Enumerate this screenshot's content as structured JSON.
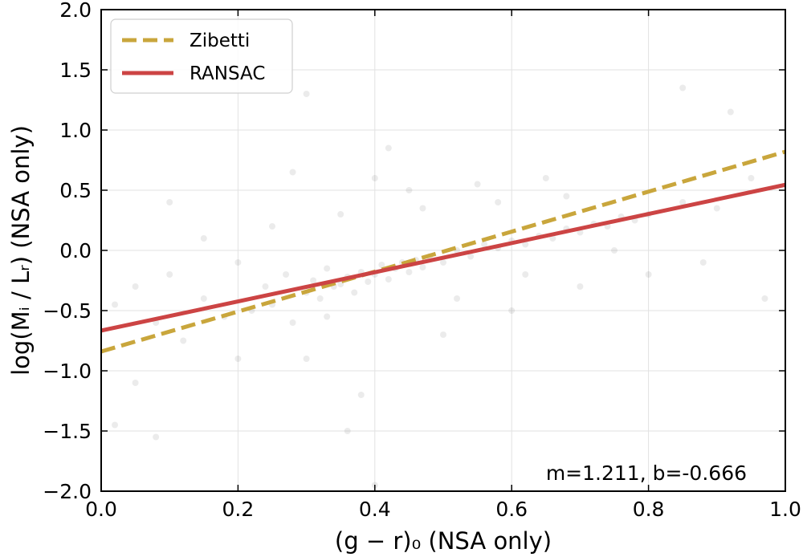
{
  "chart_data": {
    "type": "scatter",
    "xlabel": "(g − r)₀ (NSA only)",
    "ylabel": "log(Mᵢ / Lᵣ) (NSA only)",
    "xlim": [
      0.0,
      1.0
    ],
    "ylim": [
      -2.0,
      2.0
    ],
    "x_ticks": [
      0.0,
      0.2,
      0.4,
      0.6,
      0.8,
      1.0
    ],
    "x_tick_labels": [
      "0.0",
      "0.2",
      "0.4",
      "0.6",
      "0.8",
      "1.0"
    ],
    "y_ticks": [
      -2.0,
      -1.5,
      -1.0,
      -0.5,
      0.0,
      0.5,
      1.0,
      1.5,
      2.0
    ],
    "y_tick_labels": [
      "−2.0",
      "−1.5",
      "−1.0",
      "−0.5",
      "0.0",
      "0.5",
      "1.0",
      "1.5",
      "2.0"
    ],
    "grid": true,
    "legend_position": "top-left",
    "scatter": {
      "color": "#000000",
      "opacity": 0.08,
      "points": [
        [
          0.02,
          -0.45
        ],
        [
          0.05,
          -0.3
        ],
        [
          0.08,
          -0.6
        ],
        [
          0.1,
          -0.2
        ],
        [
          0.12,
          -0.75
        ],
        [
          0.15,
          -0.4
        ],
        [
          0.18,
          -0.55
        ],
        [
          0.2,
          -0.1
        ],
        [
          0.22,
          -0.5
        ],
        [
          0.24,
          -0.3
        ],
        [
          0.25,
          -0.45
        ],
        [
          0.27,
          -0.2
        ],
        [
          0.28,
          -0.6
        ],
        [
          0.3,
          -0.35
        ],
        [
          0.31,
          -0.25
        ],
        [
          0.32,
          -0.4
        ],
        [
          0.33,
          -0.15
        ],
        [
          0.34,
          -0.3
        ],
        [
          0.35,
          -0.28
        ],
        [
          0.36,
          -0.22
        ],
        [
          0.37,
          -0.35
        ],
        [
          0.38,
          -0.18
        ],
        [
          0.39,
          -0.26
        ],
        [
          0.4,
          -0.2
        ],
        [
          0.41,
          -0.12
        ],
        [
          0.42,
          -0.24
        ],
        [
          0.43,
          -0.15
        ],
        [
          0.44,
          -0.1
        ],
        [
          0.45,
          -0.18
        ],
        [
          0.46,
          -0.08
        ],
        [
          0.47,
          -0.14
        ],
        [
          0.48,
          -0.05
        ],
        [
          0.5,
          -0.1
        ],
        [
          0.52,
          0.0
        ],
        [
          0.54,
          -0.05
        ],
        [
          0.56,
          0.05
        ],
        [
          0.58,
          0.02
        ],
        [
          0.6,
          0.08
        ],
        [
          0.62,
          0.05
        ],
        [
          0.64,
          0.12
        ],
        [
          0.66,
          0.1
        ],
        [
          0.68,
          0.18
        ],
        [
          0.7,
          0.15
        ],
        [
          0.72,
          0.22
        ],
        [
          0.74,
          0.2
        ],
        [
          0.76,
          0.28
        ],
        [
          0.78,
          0.25
        ],
        [
          0.8,
          0.3
        ],
        [
          0.35,
          0.3
        ],
        [
          0.4,
          0.6
        ],
        [
          0.45,
          0.5
        ],
        [
          0.3,
          -0.9
        ],
        [
          0.5,
          -0.7
        ],
        [
          0.55,
          0.55
        ],
        [
          0.6,
          -0.5
        ],
        [
          0.25,
          0.2
        ],
        [
          0.2,
          -0.9
        ],
        [
          0.65,
          0.6
        ],
        [
          0.7,
          -0.3
        ],
        [
          0.85,
          0.4
        ],
        [
          0.9,
          0.35
        ],
        [
          0.92,
          1.15
        ],
        [
          0.1,
          0.4
        ],
        [
          0.05,
          -1.1
        ],
        [
          0.15,
          0.1
        ],
        [
          0.42,
          0.85
        ],
        [
          0.38,
          -1.2
        ],
        [
          0.33,
          -0.55
        ],
        [
          0.47,
          0.35
        ],
        [
          0.52,
          -0.4
        ],
        [
          0.58,
          0.4
        ],
        [
          0.62,
          -0.2
        ],
        [
          0.68,
          0.45
        ],
        [
          0.75,
          0.0
        ],
        [
          0.8,
          -0.2
        ],
        [
          0.88,
          -0.1
        ],
        [
          0.95,
          0.6
        ],
        [
          0.97,
          -0.4
        ],
        [
          0.3,
          1.3
        ],
        [
          0.36,
          -1.5
        ],
        [
          0.02,
          -1.45
        ],
        [
          0.08,
          -1.55
        ],
        [
          0.4,
          -1.95
        ],
        [
          0.85,
          1.35
        ],
        [
          0.28,
          0.65
        ]
      ]
    },
    "lines": [
      {
        "name": "Zibetti",
        "color": "#c9a63c",
        "style": "dashed",
        "x": [
          0.0,
          1.0
        ],
        "y": [
          -0.84,
          0.82
        ]
      },
      {
        "name": "RANSAC",
        "color": "#cc4444",
        "style": "solid",
        "x": [
          0.0,
          1.0
        ],
        "y": [
          -0.666,
          0.545
        ]
      }
    ],
    "annotation": "m=1.211, b=-0.666"
  }
}
